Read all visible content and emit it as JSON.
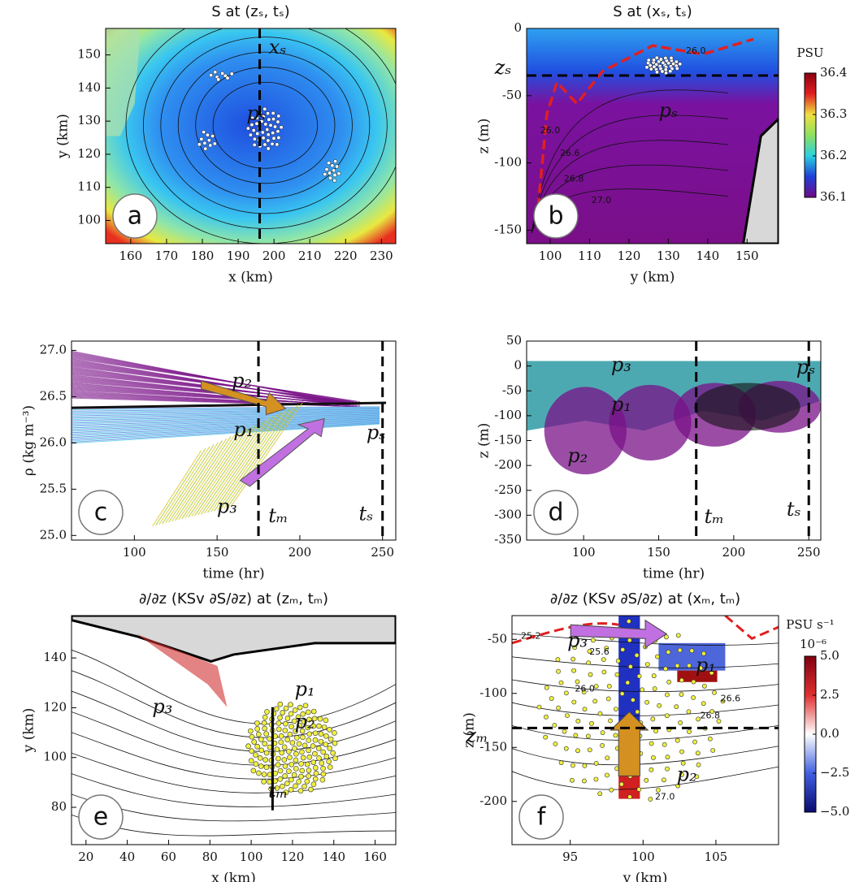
{
  "chart_data": [
    {
      "type": "heatmap",
      "panel_label": "a",
      "title": "S at (zₛ, tₛ)",
      "xlabel": "x (km)",
      "ylabel": "y (km)",
      "xlim": [
        153,
        234
      ],
      "xticks": [
        160,
        170,
        180,
        190,
        200,
        210,
        220,
        230
      ],
      "ylim": [
        93,
        158
      ],
      "yticks": [
        100,
        110,
        120,
        130,
        140,
        150
      ],
      "vlines": [
        196
      ],
      "annotations": [
        {
          "text": "xₛ",
          "x": 201,
          "y": 152
        },
        {
          "text": "pₛ",
          "x": 195,
          "y": 132
        }
      ]
    },
    {
      "type": "heatmap",
      "panel_label": "b",
      "title": "S at (xₛ, tₛ)",
      "xlabel": "y (km)",
      "ylabel": "z (m)",
      "xlim": [
        94,
        158
      ],
      "xticks": [
        100,
        110,
        120,
        130,
        140,
        150
      ],
      "ylim": [
        -160,
        0
      ],
      "yticks": [
        0,
        -50,
        -100,
        -150
      ],
      "hlines": [
        -35
      ],
      "annotations": [
        {
          "text": "zₛ",
          "x": 88,
          "y": -30
        },
        {
          "text": "pₛ",
          "x": 130,
          "y": -62
        }
      ],
      "contour_labels": [
        {
          "text": "26.0",
          "x": 137,
          "y": -17
        },
        {
          "text": "26.0",
          "x": 100,
          "y": -76
        },
        {
          "text": "26.6",
          "x": 105,
          "y": -93
        },
        {
          "text": "26.8",
          "x": 106,
          "y": -112
        },
        {
          "text": "27.0",
          "x": 113,
          "y": -128
        }
      ],
      "colorbar": {
        "label": "PSU",
        "lim": [
          36.1,
          36.4
        ],
        "ticks": [
          36.1,
          36.2,
          36.3,
          36.4
        ],
        "colors": [
          "#6e0b86",
          "#1f3fd6",
          "#2ad1e0",
          "#8fe060",
          "#f0e040",
          "#e02020",
          "#8a0010"
        ]
      }
    },
    {
      "type": "trajectory",
      "panel_label": "c",
      "xlabel": "time (hr)",
      "ylabel": "ρ (kg m⁻³)",
      "xlim": [
        62,
        258
      ],
      "xticks": [
        100,
        150,
        200,
        250
      ],
      "ylim": [
        24.95,
        27.1
      ],
      "yticks": [
        {
          "value": 25,
          "label": "25.0"
        },
        {
          "value": 25.5,
          "label": "25.5"
        },
        {
          "value": 26,
          "label": "26.0"
        },
        {
          "value": 26.5,
          "label": "26.5"
        },
        {
          "value": 27,
          "label": "27.0"
        }
      ],
      "vlines": [
        175,
        250
      ],
      "annotations": [
        {
          "text": "p₂",
          "x": 165,
          "y": 26.66
        },
        {
          "text": "p₁",
          "x": 166,
          "y": 26.13
        },
        {
          "text": "p₃",
          "x": 156,
          "y": 25.3
        },
        {
          "text": "pₛ",
          "x": 246,
          "y": 26.1
        },
        {
          "text": "tₘ",
          "x": 187,
          "y": 25.2
        },
        {
          "text": "tₛ",
          "x": 240,
          "y": 25.22
        }
      ]
    },
    {
      "type": "trajectory",
      "panel_label": "d",
      "xlabel": "time (hr)",
      "ylabel": "z (m)",
      "xlim": [
        62,
        258
      ],
      "xticks": [
        100,
        150,
        200,
        250
      ],
      "ylim": [
        -350,
        50
      ],
      "yticks": [
        -350,
        -300,
        -250,
        -200,
        -150,
        -100,
        -50,
        0,
        50
      ],
      "vlines": [
        175,
        250
      ],
      "annotations": [
        {
          "text": "p₃",
          "x": 125,
          "y": 0
        },
        {
          "text": "pₛ",
          "x": 248,
          "y": -5
        },
        {
          "text": "p₁",
          "x": 125,
          "y": -80
        },
        {
          "text": "p₂",
          "x": 96,
          "y": -183
        },
        {
          "text": "tₘ",
          "x": 187,
          "y": -305
        },
        {
          "text": "tₛ",
          "x": 240,
          "y": -290
        }
      ]
    },
    {
      "type": "heatmap",
      "panel_label": "e",
      "title": "∂/∂z (KSv ∂S/∂z) at (zₘ, tₘ)",
      "xlabel": "x (km)",
      "ylabel": "y (km)",
      "xlim": [
        13,
        170
      ],
      "xticks": [
        20,
        40,
        60,
        80,
        100,
        120,
        140,
        160
      ],
      "ylim": [
        65,
        157
      ],
      "yticks": [
        80,
        100,
        120,
        140
      ],
      "annotations": [
        {
          "text": "p₃",
          "x": 57,
          "y": 120
        },
        {
          "text": "p₁",
          "x": 126,
          "y": 127
        },
        {
          "text": "p₂",
          "x": 126,
          "y": 114
        },
        {
          "text": "tₘ",
          "x": 113,
          "y": 86
        }
      ]
    },
    {
      "type": "heatmap",
      "panel_label": "f",
      "title": "∂/∂z (KSv ∂S/∂z) at (xₘ, tₘ)",
      "xlabel": "y (km)",
      "ylabel": "z (m)",
      "xlim": [
        91,
        109.3
      ],
      "xticks": [
        95,
        100,
        105
      ],
      "ylim": [
        -240,
        -28
      ],
      "yticks": [
        -50,
        -100,
        -150,
        -200
      ],
      "hlines": [
        -132
      ],
      "annotations": [
        {
          "text": "p₃",
          "x": 95.5,
          "y": -52
        },
        {
          "text": "p₁",
          "x": 104.3,
          "y": -75
        },
        {
          "text": "p₂",
          "x": 103,
          "y": -176
        },
        {
          "text": "zₘ",
          "x": 88.6,
          "y": -140
        }
      ],
      "contour_labels": [
        {
          "text": "25.2",
          "x": 92.3,
          "y": -47
        },
        {
          "text": "25.6",
          "x": 97,
          "y": -62
        },
        {
          "text": "26.0",
          "x": 96,
          "y": -96
        },
        {
          "text": "26.6",
          "x": 106,
          "y": -105
        },
        {
          "text": "26.8",
          "x": 104.6,
          "y": -121
        },
        {
          "text": "27.0",
          "x": 101.5,
          "y": -196
        }
      ],
      "colorbar": {
        "label": "PSU s⁻¹",
        "exponent": "10⁻⁶",
        "lim": [
          -5,
          5
        ],
        "ticks": [
          {
            "value": 5,
            "label": "5.0"
          },
          {
            "value": 2.5,
            "label": "2.5"
          },
          {
            "value": 0,
            "label": "0.0"
          },
          {
            "value": -2.5,
            "label": "−2.5"
          },
          {
            "value": -5,
            "label": "−5.0"
          }
        ],
        "colors": [
          "#0a0a70",
          "#4060e0",
          "#ffffff",
          "#e03030",
          "#800010"
        ]
      }
    }
  ]
}
